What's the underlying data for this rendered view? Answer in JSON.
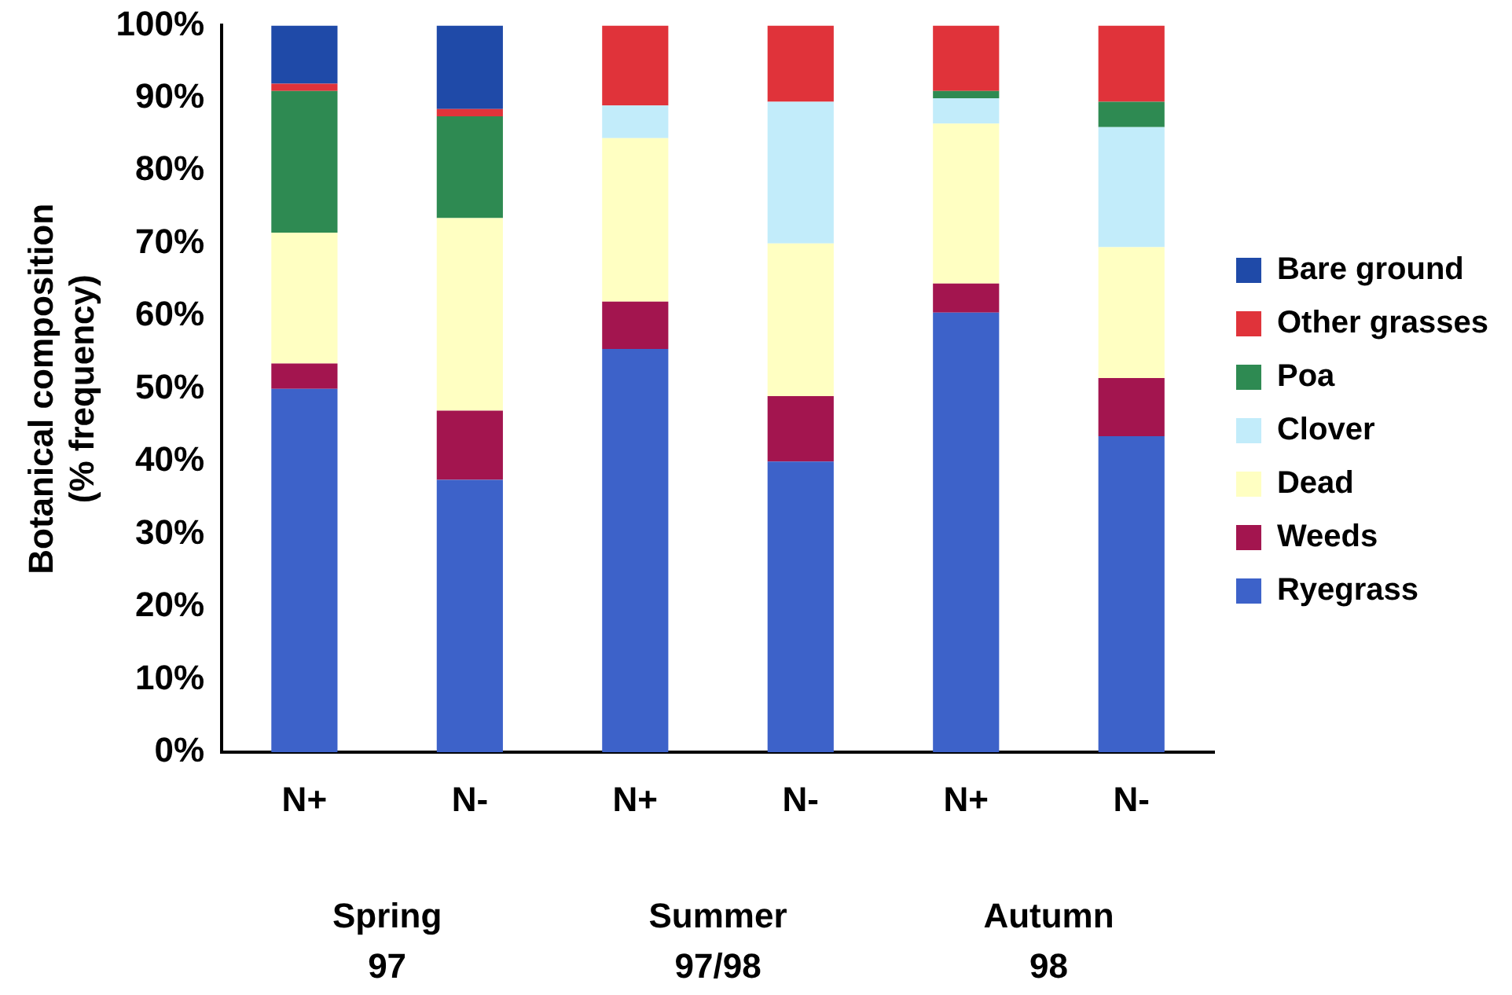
{
  "chart_data": {
    "type": "bar",
    "stacked": true,
    "ylabel": "Botanical composition\n(% frequency)",
    "categories": [
      "N+",
      "N-",
      "N+",
      "N-",
      "N+",
      "N-"
    ],
    "annotations": [
      "Spring 97",
      "Summer 97/98",
      "Autumn 98"
    ],
    "ylim": [
      0,
      100
    ],
    "yticks": [
      {
        "value": 0,
        "label": "0%"
      },
      {
        "value": 10,
        "label": "10%"
      },
      {
        "value": 20,
        "label": "20%"
      },
      {
        "value": 30,
        "label": "30%"
      },
      {
        "value": 40,
        "label": "40%"
      },
      {
        "value": 50,
        "label": "50%"
      },
      {
        "value": 60,
        "label": "60%"
      },
      {
        "value": 70,
        "label": "70%"
      },
      {
        "value": 80,
        "label": "80%"
      },
      {
        "value": 90,
        "label": "90%"
      },
      {
        "value": 100,
        "label": "100%"
      }
    ],
    "grid": false,
    "legend": "right",
    "series": [
      {
        "name": "Ryegrass",
        "color": "#3d62c9",
        "values": [
          50,
          37.5,
          55.5,
          40,
          60.5,
          43.5
        ]
      },
      {
        "name": "Weeds",
        "color": "#a3154f",
        "values": [
          3.5,
          9.5,
          6.5,
          9,
          4,
          8
        ]
      },
      {
        "name": "Dead",
        "color": "#ffffc2",
        "values": [
          18,
          26.5,
          22.5,
          21,
          22,
          18
        ]
      },
      {
        "name": "Clover",
        "color": "#c2ecfa",
        "values": [
          0,
          0,
          4.5,
          19.5,
          3.5,
          16.5
        ]
      },
      {
        "name": "Poa",
        "color": "#2e8a52",
        "values": [
          19.5,
          14,
          0,
          0,
          1,
          3.5
        ]
      },
      {
        "name": "Other grasses",
        "color": "#e0333a",
        "values": [
          1,
          1,
          11,
          10.5,
          9,
          10.5
        ]
      },
      {
        "name": "Bare ground",
        "color": "#1f4aa8",
        "values": [
          8,
          11.5,
          0,
          0,
          0,
          0
        ]
      }
    ]
  }
}
